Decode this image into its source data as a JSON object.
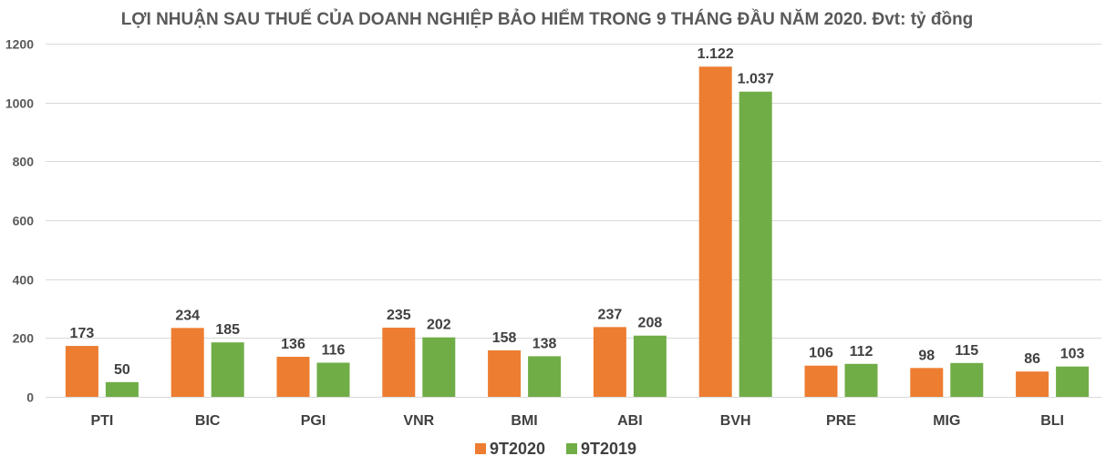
{
  "chart_data": {
    "type": "bar",
    "title": "LỢI NHUẬN SAU THUẾ CỦA DOANH NGHIỆP BẢO HIỂM TRONG 9 THÁNG ĐẦU NĂM 2020. Đvt: tỷ đồng",
    "categories": [
      "PTI",
      "BIC",
      "PGI",
      "VNR",
      "BMI",
      "ABI",
      "BVH",
      "PRE",
      "MIG",
      "BLI"
    ],
    "series": [
      {
        "name": "9T2020",
        "color": "#ED7D31",
        "values": [
          173,
          234,
          136,
          235,
          158,
          237,
          1122,
          106,
          98,
          86
        ],
        "labels": [
          "173",
          "234",
          "136",
          "235",
          "158",
          "237",
          "1.122",
          "106",
          "98",
          "86"
        ]
      },
      {
        "name": "9T2019",
        "color": "#70AD47",
        "values": [
          50,
          185,
          116,
          202,
          138,
          208,
          1037,
          112,
          115,
          103
        ],
        "labels": [
          "50",
          "185",
          "116",
          "202",
          "138",
          "208",
          "1.037",
          "112",
          "115",
          "103"
        ]
      }
    ],
    "ylim": [
      0,
      1200
    ],
    "yticks": [
      0,
      200,
      400,
      600,
      800,
      1000,
      1200
    ],
    "grid": true,
    "legend": "bottom"
  }
}
